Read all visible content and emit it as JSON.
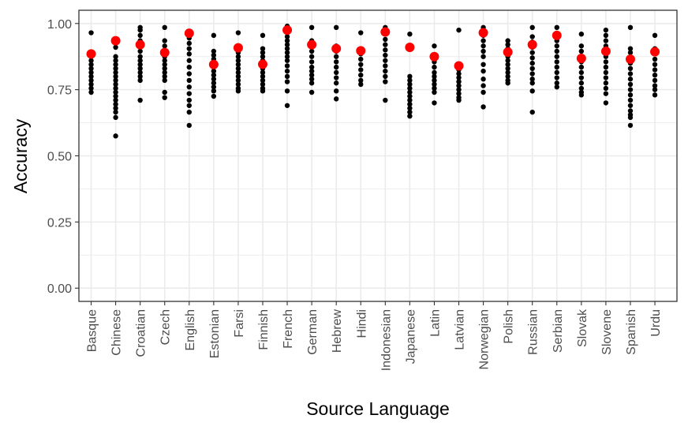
{
  "chart_data": {
    "type": "scatter",
    "xlabel": "Source Language",
    "ylabel": "Accuracy",
    "ylim": [
      -0.05,
      1.05
    ],
    "yticks": [
      0.0,
      0.25,
      0.5,
      0.75,
      1.0
    ],
    "ytick_labels": [
      "0.00",
      "0.25",
      "0.50",
      "0.75",
      "1.00"
    ],
    "grid": true,
    "colors": {
      "points": "#000000",
      "means": "#ff0000",
      "grid": "#ebebeb",
      "panel_border": "#333333"
    },
    "categories": [
      "Basque",
      "Chinese",
      "Croatian",
      "Czech",
      "English",
      "Estonian",
      "Farsi",
      "Finnish",
      "French",
      "German",
      "Hebrew",
      "Hindi",
      "Indonesian",
      "Japanese",
      "Latin",
      "Latvian",
      "Norwegian",
      "Polish",
      "Russian",
      "Serbian",
      "Slovak",
      "Slovene",
      "Spanish",
      "Urdu"
    ],
    "series": [
      {
        "values": [
          [
            0.965,
            0.89,
            0.875,
            0.86,
            0.845,
            0.83,
            0.815,
            0.8,
            0.785,
            0.77,
            0.755,
            0.74
          ],
          [
            0.91,
            0.875,
            0.86,
            0.845,
            0.83,
            0.815,
            0.8,
            0.785,
            0.77,
            0.755,
            0.74,
            0.725,
            0.71,
            0.695,
            0.68,
            0.665,
            0.645,
            0.575
          ],
          [
            0.985,
            0.975,
            0.955,
            0.935,
            0.915,
            0.895,
            0.875,
            0.86,
            0.845,
            0.83,
            0.815,
            0.8,
            0.785,
            0.71
          ],
          [
            0.985,
            0.935,
            0.915,
            0.895,
            0.875,
            0.86,
            0.845,
            0.83,
            0.815,
            0.8,
            0.785,
            0.74,
            0.72
          ],
          [
            0.965,
            0.945,
            0.925,
            0.905,
            0.885,
            0.86,
            0.835,
            0.81,
            0.785,
            0.76,
            0.735,
            0.71,
            0.69,
            0.665,
            0.615
          ],
          [
            0.955,
            0.895,
            0.88,
            0.865,
            0.85,
            0.835,
            0.82,
            0.805,
            0.79,
            0.775,
            0.76,
            0.745,
            0.725
          ],
          [
            0.965,
            0.905,
            0.89,
            0.875,
            0.86,
            0.845,
            0.83,
            0.815,
            0.8,
            0.785,
            0.77,
            0.755,
            0.745
          ],
          [
            0.955,
            0.905,
            0.89,
            0.875,
            0.86,
            0.845,
            0.83,
            0.815,
            0.8,
            0.785,
            0.77,
            0.755,
            0.745
          ],
          [
            0.99,
            0.98,
            0.965,
            0.95,
            0.935,
            0.92,
            0.905,
            0.89,
            0.875,
            0.86,
            0.84,
            0.82,
            0.8,
            0.78,
            0.745,
            0.69
          ],
          [
            0.985,
            0.935,
            0.915,
            0.895,
            0.875,
            0.855,
            0.835,
            0.82,
            0.805,
            0.79,
            0.775,
            0.74
          ],
          [
            0.985,
            0.915,
            0.895,
            0.875,
            0.855,
            0.835,
            0.815,
            0.795,
            0.775,
            0.745,
            0.715
          ],
          [
            0.965,
            0.905,
            0.885,
            0.865,
            0.845,
            0.825,
            0.805,
            0.785,
            0.77
          ],
          [
            0.985,
            0.975,
            0.96,
            0.94,
            0.92,
            0.9,
            0.88,
            0.86,
            0.84,
            0.82,
            0.8,
            0.78,
            0.71
          ],
          [
            0.96,
            0.8,
            0.785,
            0.77,
            0.755,
            0.74,
            0.725,
            0.71,
            0.695,
            0.68,
            0.665,
            0.65
          ],
          [
            0.915,
            0.875,
            0.855,
            0.835,
            0.815,
            0.8,
            0.785,
            0.77,
            0.755,
            0.74,
            0.7
          ],
          [
            0.975,
            0.84,
            0.825,
            0.81,
            0.795,
            0.78,
            0.765,
            0.75,
            0.735,
            0.72,
            0.71
          ],
          [
            0.985,
            0.975,
            0.955,
            0.935,
            0.915,
            0.895,
            0.875,
            0.845,
            0.82,
            0.79,
            0.765,
            0.74,
            0.685
          ],
          [
            0.935,
            0.92,
            0.905,
            0.89,
            0.875,
            0.86,
            0.845,
            0.83,
            0.815,
            0.8,
            0.785,
            0.775
          ],
          [
            0.985,
            0.95,
            0.93,
            0.91,
            0.89,
            0.87,
            0.85,
            0.83,
            0.81,
            0.79,
            0.775,
            0.745,
            0.665
          ],
          [
            0.985,
            0.955,
            0.935,
            0.915,
            0.895,
            0.875,
            0.855,
            0.835,
            0.815,
            0.795,
            0.775,
            0.76
          ],
          [
            0.96,
            0.915,
            0.895,
            0.875,
            0.855,
            0.835,
            0.815,
            0.795,
            0.775,
            0.755,
            0.74,
            0.73
          ],
          [
            0.975,
            0.955,
            0.935,
            0.915,
            0.895,
            0.875,
            0.855,
            0.835,
            0.815,
            0.795,
            0.775,
            0.755,
            0.735,
            0.7
          ],
          [
            0.985,
            0.905,
            0.89,
            0.87,
            0.85,
            0.83,
            0.81,
            0.79,
            0.77,
            0.75,
            0.73,
            0.71,
            0.69,
            0.67,
            0.655,
            0.645,
            0.615
          ],
          [
            0.955,
            0.905,
            0.885,
            0.865,
            0.845,
            0.825,
            0.805,
            0.785,
            0.765,
            0.75,
            0.73
          ]
        ]
      },
      {
        "values": [
          0.885,
          0.935,
          0.92,
          0.89,
          0.963,
          0.845,
          0.908,
          0.846,
          0.975,
          0.92,
          0.905,
          0.897,
          0.968,
          0.91,
          0.875,
          0.84,
          0.965,
          0.892,
          0.92,
          0.955,
          0.868,
          0.895,
          0.865,
          0.893
        ]
      }
    ]
  }
}
